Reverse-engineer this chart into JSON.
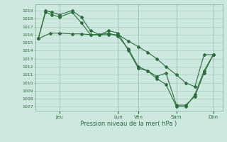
{
  "background_color": "#cde8de",
  "grid_color": "#aaccbb",
  "line_color": "#2d6e3e",
  "title": "Pression niveau de la mer( hPa )",
  "ylim_min": 1006.5,
  "ylim_max": 1019.8,
  "yticks": [
    1007,
    1008,
    1009,
    1010,
    1011,
    1012,
    1013,
    1014,
    1015,
    1016,
    1017,
    1018,
    1019
  ],
  "day_positions": [
    35,
    130,
    163,
    225,
    285
  ],
  "day_labels": [
    "Jeu",
    "Lun",
    "Ven",
    "Sam",
    "Dim"
  ],
  "line1_x": [
    0,
    20,
    35,
    55,
    70,
    85,
    100,
    115,
    130,
    147,
    163,
    178,
    193,
    208,
    225,
    240,
    255,
    270,
    285
  ],
  "line1_y": [
    1015.5,
    1016.2,
    1016.2,
    1016.1,
    1016.1,
    1016.0,
    1016.0,
    1016.0,
    1016.0,
    1015.2,
    1014.5,
    1013.8,
    1013.0,
    1012.0,
    1011.0,
    1010.0,
    1009.5,
    1013.5,
    1013.5
  ],
  "line2_x": [
    0,
    12,
    22,
    35,
    55,
    70,
    85,
    100,
    115,
    130,
    147,
    163,
    178,
    193,
    208,
    225,
    240,
    255,
    270,
    285
  ],
  "line2_y": [
    1015.5,
    1019.0,
    1018.8,
    1018.5,
    1019.0,
    1018.2,
    1016.5,
    1016.0,
    1016.5,
    1016.2,
    1014.0,
    1011.8,
    1011.5,
    1010.5,
    1009.8,
    1007.0,
    1007.0,
    1008.5,
    1011.5,
    1013.5
  ],
  "line3_x": [
    0,
    12,
    22,
    35,
    55,
    70,
    85,
    100,
    115,
    130,
    147,
    163,
    178,
    193,
    208,
    225,
    240,
    255,
    270,
    285
  ],
  "line3_y": [
    1015.5,
    1018.8,
    1018.5,
    1018.2,
    1018.8,
    1017.5,
    1016.0,
    1016.0,
    1016.2,
    1015.8,
    1014.2,
    1012.0,
    1011.5,
    1010.8,
    1011.2,
    1007.2,
    1007.2,
    1008.3,
    1011.2,
    1013.5
  ]
}
